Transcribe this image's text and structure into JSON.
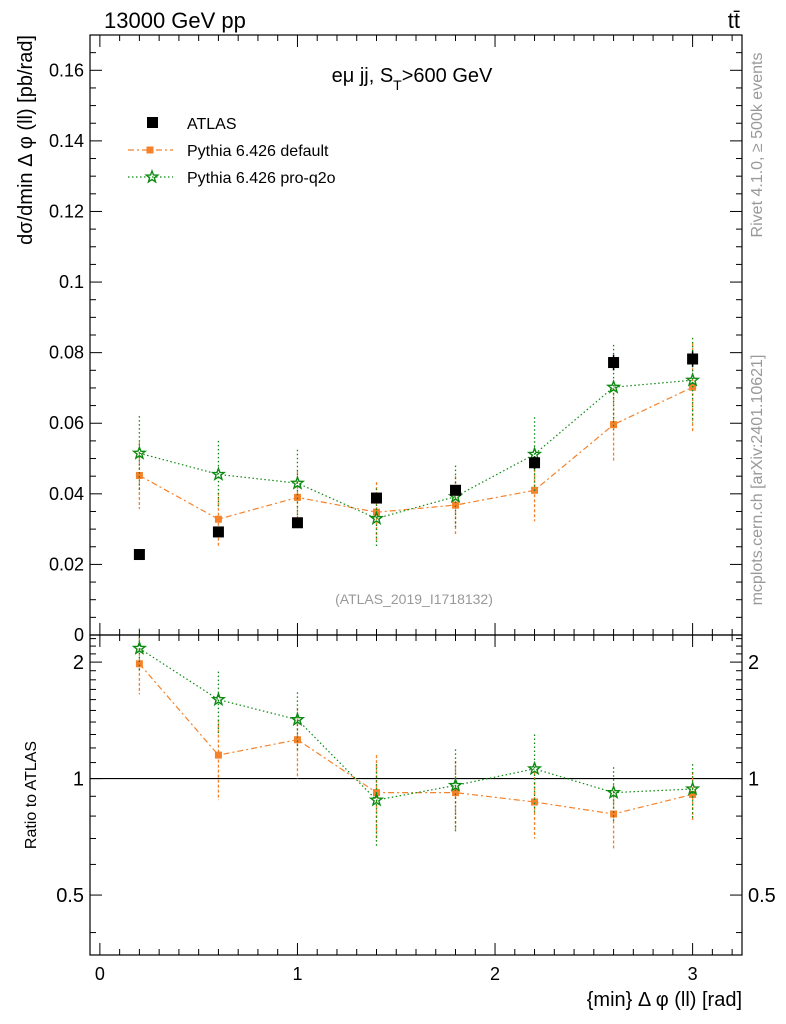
{
  "header": {
    "energy_label": "13000 GeV pp",
    "process_label": "tt̄",
    "rivet_label": "Rivet 4.1.0, ≥ 500k events",
    "mcplots_label": "mcplots.cern.ch [arXiv:2401.10621]"
  },
  "colors": {
    "data": "#000000",
    "pythia_default": "#f5822a",
    "pythia_pro": "#0d8a12"
  },
  "chart_data": {
    "type": "scatter",
    "title": "eμ jj, S_T>600 GeV",
    "title_main": "eμ jj, S",
    "title_sub": "T",
    "title_rest": ">600 GeV",
    "analysis_label": "(ATLAS_2019_I1718132)",
    "xlabel": "{min} Δ φ (ll) [rad]",
    "ylabel": "dσ/dmin Δ φ (ll) [pb/rad]",
    "ratio_ylabel": "Ratio to ATLAS",
    "xlim": [
      -0.05,
      3.25
    ],
    "ylim": [
      0,
      0.17
    ],
    "ratio_ylim": [
      0.35,
      2.35
    ],
    "x_ticks": [
      "0",
      "1",
      "2",
      "3"
    ],
    "y_ticks": [
      "0",
      "0.02",
      "0.04",
      "0.06",
      "0.08",
      "0.1",
      "0.12",
      "0.14",
      "0.16"
    ],
    "ratio_ticks": [
      "0.5",
      "1",
      "2"
    ],
    "x": [
      0.2,
      0.6,
      1.0,
      1.4,
      1.8,
      2.2,
      2.6,
      3.0
    ],
    "legend": [
      "ATLAS",
      "Pythia 6.426 default",
      "Pythia 6.426 pro-q2o"
    ],
    "series": [
      {
        "name": "ATLAS",
        "values": [
          0.0228,
          0.0292,
          0.0318,
          0.0388,
          0.041,
          0.0488,
          0.0772,
          0.0782
        ],
        "errors": [
          0.0005,
          0.0012,
          0.0012,
          0.0015,
          0.0015,
          0.0018,
          0.0022,
          0.0022
        ]
      },
      {
        "name": "Pythia 6.426 default",
        "values": [
          0.0452,
          0.0328,
          0.039,
          0.0348,
          0.0368,
          0.041,
          0.0596,
          0.0702
        ],
        "errors": [
          0.0095,
          0.0075,
          0.0075,
          0.0085,
          0.0082,
          0.0088,
          0.0105,
          0.0125
        ],
        "ratio": [
          1.98,
          1.15,
          1.26,
          0.92,
          0.92,
          0.87,
          0.81,
          0.91
        ],
        "ratio_errors": [
          0.33,
          0.27,
          0.26,
          0.23,
          0.19,
          0.17,
          0.15,
          0.13
        ]
      },
      {
        "name": "Pythia 6.426 pro-q2o",
        "values": [
          0.0515,
          0.0455,
          0.043,
          0.033,
          0.0392,
          0.0512,
          0.0702,
          0.0722
        ],
        "errors": [
          0.0105,
          0.0095,
          0.0095,
          0.0085,
          0.0088,
          0.0105,
          0.012,
          0.012
        ],
        "ratio": [
          2.17,
          1.6,
          1.42,
          0.88,
          0.96,
          1.06,
          0.92,
          0.94
        ],
        "ratio_errors": [
          0.27,
          0.29,
          0.25,
          0.21,
          0.23,
          0.24,
          0.15,
          0.15
        ]
      }
    ]
  }
}
